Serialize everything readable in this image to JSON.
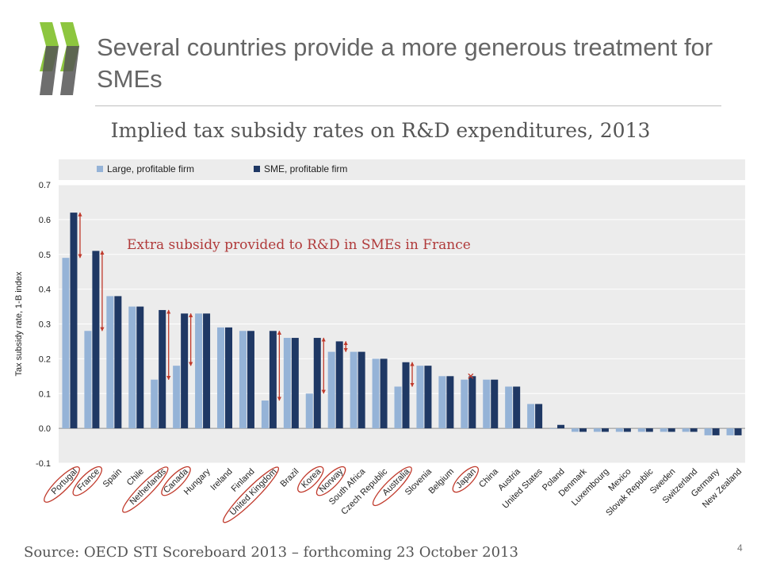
{
  "slide": {
    "title": "Several countries provide a more generous treatment for SMEs",
    "source": "Source: OECD STI Scoreboard 2013 – forthcoming 23 October 2013",
    "page_number": "4",
    "annotation": "Extra subsidy provided to R&D in SMEs in France"
  },
  "colors": {
    "large": "#95b3d7",
    "sme": "#1f3864",
    "highlight": "#c0392b",
    "logo": "#8dc63f",
    "logo_dark": "#555555",
    "plot_bg": "#ececec"
  },
  "chart_data": {
    "type": "bar",
    "title": "Implied tax subsidy rates on R&D expenditures, 2013",
    "xlabel": "",
    "ylabel": "Tax subsidy rate, 1-B index",
    "ylim": [
      -0.1,
      0.7
    ],
    "yticks": [
      "0.7",
      "0.6",
      "0.5",
      "0.4",
      "0.3",
      "0.2",
      "0.1",
      "0.0",
      "-0.1"
    ],
    "ytick_values": [
      0.7,
      0.6,
      0.5,
      0.4,
      0.3,
      0.2,
      0.1,
      0.0,
      -0.1
    ],
    "legend_position": "top",
    "grid": true,
    "categories": [
      "Portugal",
      "France",
      "Spain",
      "Chile",
      "Netherlands",
      "Canada",
      "Hungary",
      "Ireland",
      "Finland",
      "United Kingdom",
      "Brazil",
      "Korea",
      "Norway",
      "South Africa",
      "Czech Republic",
      "Australia",
      "Slovenia",
      "Belgium",
      "Japan",
      "China",
      "Austria",
      "United States",
      "Poland",
      "Denmark",
      "Luxembourg",
      "Mexico",
      "Slovak Republic",
      "Sweden",
      "Switzerland",
      "Germany",
      "New Zealand"
    ],
    "series": [
      {
        "name": "Large, profitable firm",
        "values": [
          0.49,
          0.28,
          0.38,
          0.35,
          0.14,
          0.18,
          0.33,
          0.29,
          0.28,
          0.08,
          0.26,
          0.1,
          0.22,
          0.22,
          0.2,
          0.12,
          0.18,
          0.15,
          0.14,
          0.14,
          0.12,
          0.07,
          0.0,
          -0.01,
          -0.01,
          -0.01,
          -0.01,
          -0.01,
          -0.01,
          -0.02,
          -0.02
        ]
      },
      {
        "name": "SME, profitable firm",
        "values": [
          0.62,
          0.51,
          0.38,
          0.35,
          0.34,
          0.33,
          0.33,
          0.29,
          0.28,
          0.28,
          0.26,
          0.26,
          0.25,
          0.22,
          0.2,
          0.19,
          0.18,
          0.15,
          0.15,
          0.14,
          0.12,
          0.07,
          0.01,
          -0.01,
          -0.01,
          -0.01,
          -0.01,
          -0.01,
          -0.01,
          -0.02,
          -0.02
        ]
      }
    ],
    "highlighted_countries": [
      "Portugal",
      "France",
      "Netherlands",
      "Canada",
      "United Kingdom",
      "Korea",
      "Norway",
      "Australia",
      "Japan"
    ]
  }
}
